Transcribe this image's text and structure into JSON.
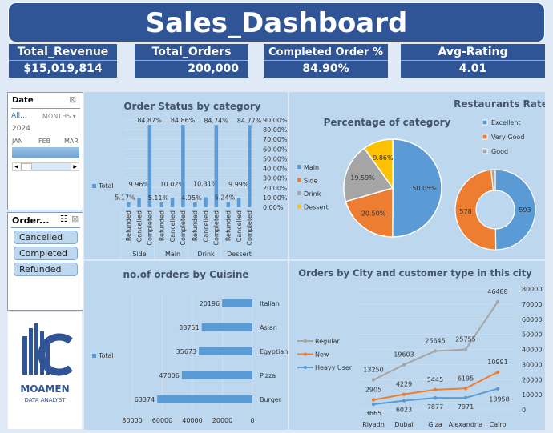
{
  "title": "Sales_Dashboard",
  "kpis": [
    {
      "label": "Total_Revenue",
      "value": "$15,019,814"
    },
    {
      "label": "Total_Orders",
      "value": "200,000"
    },
    {
      "label": "Completed Order %",
      "value": "84.90%"
    },
    {
      "label": "Avg-Rating",
      "value": "4.01"
    }
  ],
  "date_slicer": {
    "title": "Date",
    "all": "All...",
    "level": "MONTHS",
    "year": "2024",
    "months": [
      "JAN",
      "FEB",
      "MAR"
    ]
  },
  "status_slicer": {
    "title": "Order...",
    "items": [
      "Cancelled",
      "Completed",
      "Refunded"
    ]
  },
  "logo": {
    "text": "MOAMEN",
    "sub": "DATA ANALYST"
  },
  "colors": {
    "header": "#2f5597",
    "panel": "#bdd7ee",
    "blue": "#5b9bd5",
    "orange": "#ed7d31",
    "gray": "#a5a5a5",
    "yellow": "#ffc000"
  },
  "chart_data": [
    {
      "type": "bar",
      "title": "Order Status by category",
      "legend": [
        "Total"
      ],
      "groups": [
        "Side",
        "Main",
        "Drink",
        "Dessert"
      ],
      "categories": [
        "Refunded",
        "Cancelled",
        "Completed"
      ],
      "values": [
        [
          5.17,
          9.96,
          84.87
        ],
        [
          5.11,
          10.02,
          84.86
        ],
        [
          4.95,
          10.31,
          84.74
        ],
        [
          5.24,
          9.99,
          84.77
        ]
      ],
      "labels": [
        [
          "5.17%",
          "9.96%",
          "84.87%"
        ],
        [
          "5.11%",
          "10.02%",
          "84.86%"
        ],
        [
          "4.95%",
          "10.31%",
          "84.74%"
        ],
        [
          "5.24%",
          "9.99%",
          "84.77%"
        ]
      ],
      "yticks": [
        "0.00%",
        "10.00%",
        "20.00%",
        "30.00%",
        "40.00%",
        "50.00%",
        "60.00%",
        "70.00%",
        "80.00%",
        "90.00%"
      ],
      "ylim": [
        0,
        90
      ]
    },
    {
      "type": "pie",
      "title": "Percentage of category",
      "categories": [
        "Main",
        "Side",
        "Drink",
        "Dessert"
      ],
      "values": [
        50.05,
        20.5,
        19.59,
        9.86
      ],
      "labels": [
        "50.05%",
        "20.50%",
        "19.59%",
        "9.86%"
      ]
    },
    {
      "type": "pie",
      "subtype": "donut",
      "title": "Restaurants Rate",
      "categories": [
        "Excellent",
        "Very Good",
        "Good"
      ],
      "values": [
        593,
        578,
        20
      ],
      "labels": [
        "593",
        "578",
        ""
      ]
    },
    {
      "type": "bar",
      "orientation": "horizontal",
      "title": "no.of orders by Cuisine",
      "legend": [
        "Total"
      ],
      "categories": [
        "Italian",
        "Asian",
        "Egyptian",
        "Pizza",
        "Burger"
      ],
      "values": [
        20196,
        33751,
        35673,
        47006,
        63374
      ],
      "xticks": [
        "80000",
        "60000",
        "40000",
        "20000",
        "0"
      ],
      "xlim": [
        0,
        80000
      ],
      "reversed_axis": true
    },
    {
      "type": "line",
      "stacked": true,
      "title": "Orders by City and customer type in this city",
      "categories": [
        "Riyadh",
        "Dubai",
        "Giza",
        "Alexandria",
        "Cairo"
      ],
      "series": [
        {
          "name": "Regular",
          "values": [
            13250,
            19603,
            25645,
            25755,
            46488
          ]
        },
        {
          "name": "New",
          "values": [
            2905,
            4229,
            5445,
            6195,
            10991
          ]
        },
        {
          "name": "Heavy User",
          "values": [
            3665,
            6023,
            7877,
            7971,
            13958
          ]
        }
      ],
      "yticks": [
        "0",
        "10000",
        "20000",
        "30000",
        "40000",
        "50000",
        "60000",
        "70000",
        "80000"
      ],
      "ylim": [
        0,
        80000
      ]
    }
  ]
}
